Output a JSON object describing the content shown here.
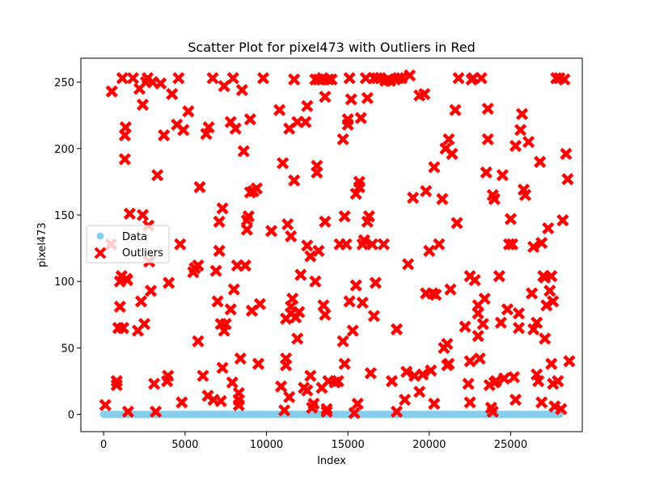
{
  "chart_data": {
    "type": "scatter",
    "title": "Scatter Plot for pixel473 with Outliers in Red",
    "xlabel": "Index",
    "ylabel": "pixel473",
    "xlim": [
      -1400,
      29400
    ],
    "ylim": [
      -13,
      268
    ],
    "xticks": [
      0,
      5000,
      10000,
      15000,
      20000,
      25000
    ],
    "yticks": [
      0,
      50,
      100,
      150,
      200,
      250
    ],
    "grid": false,
    "legend_position": "center-left",
    "series": [
      {
        "name": "Data",
        "marker": "circle",
        "color": "#87ceeb",
        "x_range": [
          0,
          27999
        ],
        "y_constant": 0
      },
      {
        "name": "Outliers",
        "marker": "x",
        "color": "#ff0000",
        "points": [
          [
            100,
            7
          ],
          [
            500,
            243
          ],
          [
            450,
            128
          ],
          [
            800,
            25
          ],
          [
            800,
            22
          ],
          [
            900,
            65
          ],
          [
            1000,
            81
          ],
          [
            1000,
            100
          ],
          [
            1100,
            104
          ],
          [
            1150,
            253
          ],
          [
            1200,
            65
          ],
          [
            1300,
            192
          ],
          [
            1300,
            210
          ],
          [
            1350,
            216
          ],
          [
            1400,
            102
          ],
          [
            1450,
            101
          ],
          [
            1500,
            2
          ],
          [
            1600,
            151
          ],
          [
            1800,
            253
          ],
          [
            2100,
            63
          ],
          [
            2200,
            245
          ],
          [
            2300,
            85
          ],
          [
            2400,
            150
          ],
          [
            2400,
            233
          ],
          [
            2500,
            68
          ],
          [
            2600,
            250
          ],
          [
            2700,
            253
          ],
          [
            2750,
            142
          ],
          [
            2800,
            115
          ],
          [
            2900,
            93
          ],
          [
            3000,
            250
          ],
          [
            3100,
            23
          ],
          [
            3200,
            2
          ],
          [
            3300,
            180
          ],
          [
            3500,
            249
          ],
          [
            3700,
            210
          ],
          [
            3900,
            25
          ],
          [
            3950,
            29
          ],
          [
            4000,
            99
          ],
          [
            4200,
            241
          ],
          [
            4500,
            218
          ],
          [
            4600,
            253
          ],
          [
            4700,
            128
          ],
          [
            4800,
            9
          ],
          [
            4900,
            214
          ],
          [
            5200,
            228
          ],
          [
            5500,
            107
          ],
          [
            5600,
            110
          ],
          [
            5800,
            112
          ],
          [
            5800,
            55
          ],
          [
            5900,
            171
          ],
          [
            6100,
            29
          ],
          [
            6300,
            211
          ],
          [
            6400,
            14
          ],
          [
            6450,
            216
          ],
          [
            6700,
            253
          ],
          [
            6750,
            11
          ],
          [
            6900,
            108
          ],
          [
            7000,
            85
          ],
          [
            7100,
            145
          ],
          [
            7100,
            123
          ],
          [
            7200,
            10
          ],
          [
            7200,
            68
          ],
          [
            7300,
            35
          ],
          [
            7300,
            155
          ],
          [
            7400,
            247
          ],
          [
            7400,
            63
          ],
          [
            7500,
            68
          ],
          [
            7800,
            79
          ],
          [
            7800,
            220
          ],
          [
            7900,
            24
          ],
          [
            7950,
            253
          ],
          [
            8000,
            94
          ],
          [
            8100,
            215
          ],
          [
            8200,
            112
          ],
          [
            8300,
            16
          ],
          [
            8300,
            7
          ],
          [
            8300,
            11
          ],
          [
            8400,
            42
          ],
          [
            8500,
            244
          ],
          [
            8600,
            198
          ],
          [
            8700,
            112
          ],
          [
            8800,
            146
          ],
          [
            8800,
            139
          ],
          [
            8900,
            149
          ],
          [
            9000,
            222
          ],
          [
            9000,
            167
          ],
          [
            9100,
            78
          ],
          [
            9200,
            168
          ],
          [
            9400,
            170
          ],
          [
            9500,
            38
          ],
          [
            9600,
            83
          ],
          [
            9800,
            253
          ],
          [
            10300,
            138
          ],
          [
            10800,
            229
          ],
          [
            10900,
            21
          ],
          [
            11000,
            189
          ],
          [
            11100,
            3
          ],
          [
            11200,
            37
          ],
          [
            11200,
            42
          ],
          [
            11200,
            72
          ],
          [
            11300,
            143
          ],
          [
            11400,
            215
          ],
          [
            11400,
            13
          ],
          [
            11500,
            81
          ],
          [
            11500,
            76
          ],
          [
            11500,
            134
          ],
          [
            11600,
            87
          ],
          [
            11700,
            176
          ],
          [
            11700,
            252
          ],
          [
            11800,
            73
          ],
          [
            11900,
            57
          ],
          [
            11900,
            220
          ],
          [
            12000,
            77
          ],
          [
            12100,
            105
          ],
          [
            12300,
            20
          ],
          [
            12400,
            220
          ],
          [
            12500,
            232
          ],
          [
            12500,
            18
          ],
          [
            12500,
            127
          ],
          [
            12700,
            29
          ],
          [
            12700,
            119
          ],
          [
            12800,
            5
          ],
          [
            12900,
            8
          ],
          [
            13000,
            100
          ],
          [
            13000,
            252
          ],
          [
            13100,
            187
          ],
          [
            13100,
            182
          ],
          [
            13200,
            252
          ],
          [
            13200,
            123
          ],
          [
            13400,
            252
          ],
          [
            13400,
            20
          ],
          [
            13450,
            253
          ],
          [
            13500,
            82
          ],
          [
            13600,
            145
          ],
          [
            13600,
            239
          ],
          [
            13600,
            75
          ],
          [
            13700,
            4
          ],
          [
            13700,
            2
          ],
          [
            13800,
            252
          ],
          [
            13800,
            25
          ],
          [
            14000,
            252
          ],
          [
            14200,
            24
          ],
          [
            14400,
            25
          ],
          [
            14500,
            128
          ],
          [
            14700,
            55
          ],
          [
            14700,
            207
          ],
          [
            14800,
            149
          ],
          [
            14800,
            38
          ],
          [
            14900,
            128
          ],
          [
            15000,
            222
          ],
          [
            15000,
            218
          ],
          [
            15100,
            85
          ],
          [
            15100,
            253
          ],
          [
            15200,
            237
          ],
          [
            15300,
            63
          ],
          [
            15400,
            1
          ],
          [
            15500,
            166
          ],
          [
            15500,
            97
          ],
          [
            15600,
            8
          ],
          [
            15700,
            175
          ],
          [
            15700,
            171
          ],
          [
            15800,
            223
          ],
          [
            15900,
            128
          ],
          [
            15900,
            84
          ],
          [
            16000,
            131
          ],
          [
            16100,
            253
          ],
          [
            16200,
            238
          ],
          [
            16200,
            145
          ],
          [
            16300,
            149
          ],
          [
            16400,
            31
          ],
          [
            16500,
            128
          ],
          [
            16600,
            253
          ],
          [
            16600,
            74
          ],
          [
            16700,
            99
          ],
          [
            16800,
            253
          ],
          [
            17000,
            253
          ],
          [
            17200,
            128
          ],
          [
            17300,
            251
          ],
          [
            17500,
            252
          ],
          [
            17600,
            251
          ],
          [
            17700,
            25
          ],
          [
            17900,
            252
          ],
          [
            18000,
            2
          ],
          [
            18000,
            64
          ],
          [
            18100,
            253
          ],
          [
            18300,
            253
          ],
          [
            18500,
            11
          ],
          [
            18600,
            32
          ],
          [
            18700,
            113
          ],
          [
            18800,
            255
          ],
          [
            19000,
            163
          ],
          [
            19100,
            29
          ],
          [
            19400,
            17
          ],
          [
            19400,
            240
          ],
          [
            19600,
            30
          ],
          [
            19700,
            241
          ],
          [
            19800,
            168
          ],
          [
            19800,
            91
          ],
          [
            20000,
            123
          ],
          [
            20100,
            33
          ],
          [
            20200,
            91
          ],
          [
            20300,
            186
          ],
          [
            20300,
            8
          ],
          [
            20400,
            90
          ],
          [
            20600,
            128
          ],
          [
            20800,
            162
          ],
          [
            20900,
            50
          ],
          [
            21000,
            200
          ],
          [
            21100,
            53
          ],
          [
            21100,
            37
          ],
          [
            21200,
            207
          ],
          [
            21200,
            38
          ],
          [
            21300,
            94
          ],
          [
            21400,
            196
          ],
          [
            21600,
            229
          ],
          [
            21700,
            144
          ],
          [
            21800,
            253
          ],
          [
            22200,
            66
          ],
          [
            22400,
            23
          ],
          [
            22500,
            104
          ],
          [
            22500,
            9
          ],
          [
            22500,
            40
          ],
          [
            22600,
            252
          ],
          [
            22700,
            253
          ],
          [
            22800,
            101
          ],
          [
            23000,
            76
          ],
          [
            23000,
            82
          ],
          [
            23000,
            59
          ],
          [
            23100,
            42
          ],
          [
            23200,
            253
          ],
          [
            23300,
            68
          ],
          [
            23400,
            87
          ],
          [
            23500,
            182
          ],
          [
            23600,
            230
          ],
          [
            23600,
            207
          ],
          [
            23700,
            22
          ],
          [
            23800,
            5
          ],
          [
            23900,
            2
          ],
          [
            23900,
            165
          ],
          [
            24000,
            162
          ],
          [
            24000,
            24
          ],
          [
            24100,
            25
          ],
          [
            24300,
            104
          ],
          [
            24400,
            69
          ],
          [
            24500,
            180
          ],
          [
            24600,
            27
          ],
          [
            24800,
            79
          ],
          [
            24900,
            128
          ],
          [
            25000,
            147
          ],
          [
            25100,
            128
          ],
          [
            25200,
            28
          ],
          [
            25300,
            11
          ],
          [
            25300,
            202
          ],
          [
            25500,
            65
          ],
          [
            25500,
            76
          ],
          [
            25600,
            214
          ],
          [
            25700,
            226
          ],
          [
            25800,
            169
          ],
          [
            25900,
            165
          ],
          [
            26100,
            205
          ],
          [
            26300,
            91
          ],
          [
            26400,
            126
          ],
          [
            26400,
            64
          ],
          [
            26600,
            30
          ],
          [
            26600,
            69
          ],
          [
            26700,
            25
          ],
          [
            26800,
            190
          ],
          [
            26900,
            129
          ],
          [
            26900,
            9
          ],
          [
            27000,
            104
          ],
          [
            27100,
            57
          ],
          [
            27100,
            103
          ],
          [
            27200,
            82
          ],
          [
            27300,
            140
          ],
          [
            27400,
            93
          ],
          [
            27500,
            38
          ],
          [
            27500,
            104
          ],
          [
            27600,
            23
          ],
          [
            27600,
            85
          ],
          [
            27700,
            6
          ],
          [
            27800,
            253
          ],
          [
            27900,
            25
          ],
          [
            28000,
            253
          ],
          [
            28100,
            4
          ],
          [
            28200,
            146
          ],
          [
            28300,
            252
          ],
          [
            28400,
            196
          ],
          [
            28500,
            177
          ],
          [
            28600,
            40
          ]
        ]
      }
    ]
  }
}
